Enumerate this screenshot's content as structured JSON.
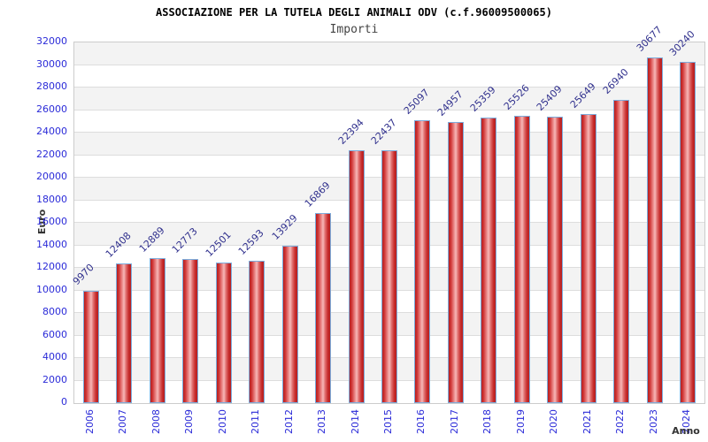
{
  "page": {
    "title": "ASSOCIAZIONE PER LA TUTELA DEGLI ANIMALI ODV (c.f.96009500065)"
  },
  "chart_data": {
    "type": "bar",
    "title": "ASSOCIAZIONE PER LA TUTELA DEGLI ANIMALI ODV (c.f.96009500065)",
    "subtitle": "Importi",
    "xlabel": "Anno",
    "ylabel": "Euro",
    "categories": [
      "2006",
      "2007",
      "2008",
      "2009",
      "2010",
      "2011",
      "2012",
      "2013",
      "2014",
      "2015",
      "2016",
      "2017",
      "2018",
      "2019",
      "2020",
      "2021",
      "2022",
      "2023",
      "2024"
    ],
    "values": [
      9970,
      12408,
      12889,
      12773,
      12501,
      12593,
      13929,
      16869,
      22394,
      22437,
      25097,
      24957,
      25359,
      25526,
      25409,
      25649,
      26940,
      30677,
      30240
    ],
    "ylim": [
      0,
      32000
    ],
    "ytick_step": 2000,
    "grid": "horizontal-only",
    "legend_position": "none",
    "bar_label_rotation_deg": -45,
    "x_tick_rotation_deg": -90,
    "colors": {
      "bar_edge": "#7cacdc",
      "bar_dark": "#b52020",
      "bar_light": "#f7b8b8",
      "tick_label": "#2b2bd8",
      "value_label": "#32328e",
      "band_shade": "#f3f3f3",
      "gridline": "#dddddd",
      "plot_border": "#cccccc",
      "title": "#000000",
      "subtitle": "#444444",
      "axis_title": "#333333"
    }
  }
}
